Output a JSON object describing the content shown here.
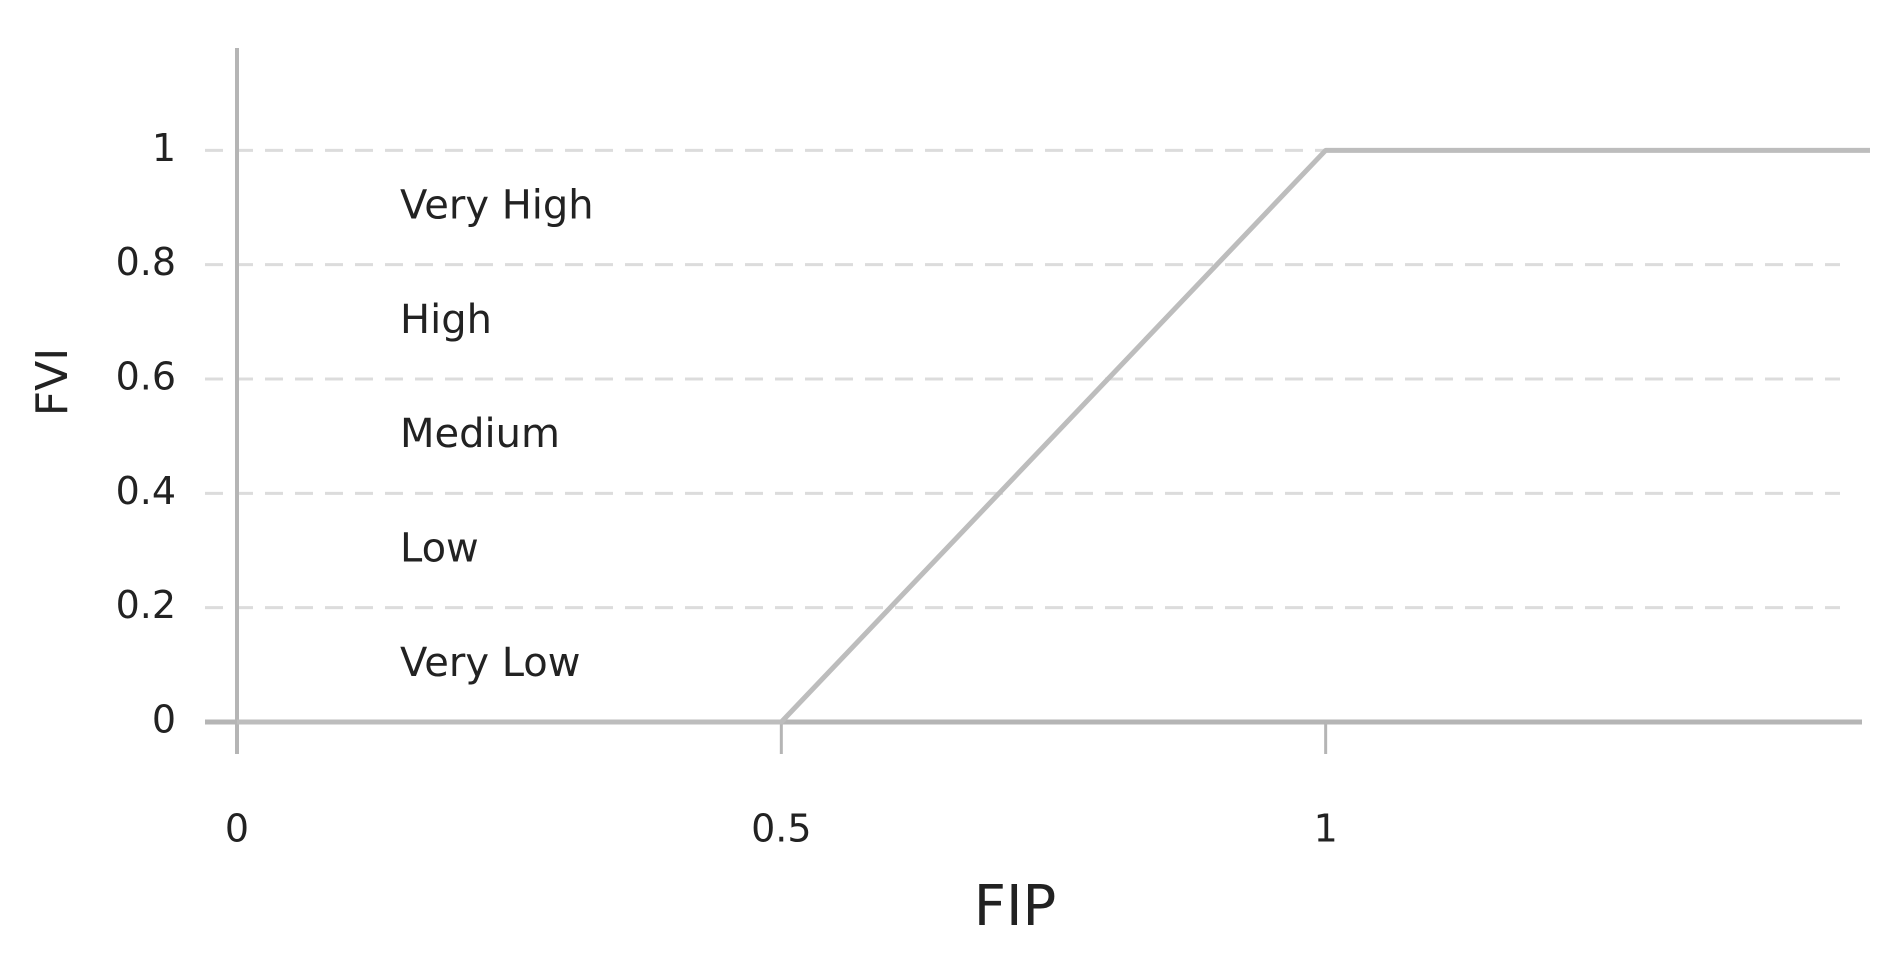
{
  "chart_data": {
    "type": "line",
    "x": [
      0,
      0.5,
      1,
      1.5
    ],
    "values": [
      0,
      0,
      1,
      1
    ],
    "color": "#bdbdbd",
    "xlim": [
      0,
      1.5
    ],
    "xticks": [
      0,
      0.5,
      1
    ],
    "ylim": [
      0,
      1.2
    ],
    "yticks": [
      0,
      0.2,
      0.4,
      0.6,
      0.8,
      1
    ],
    "grid": true,
    "x_label": "FIP",
    "y_label": "FVI",
    "annotations": [
      "Very Low",
      "Low",
      "Medium",
      "High",
      "Very High"
    ]
  }
}
